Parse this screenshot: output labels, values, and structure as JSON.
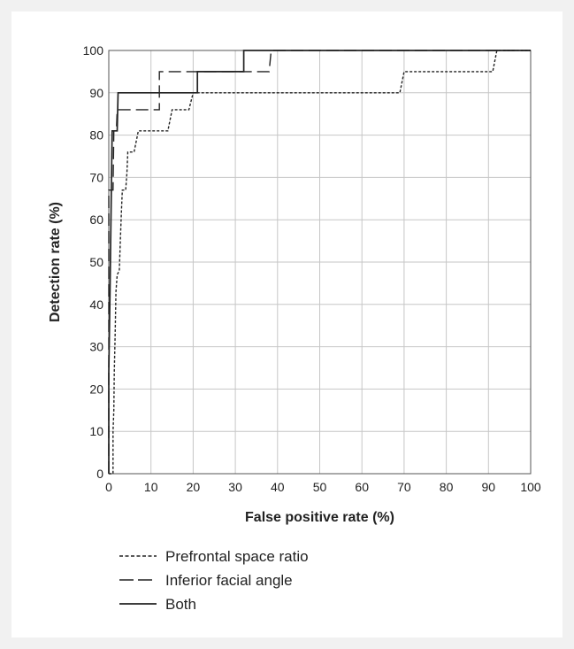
{
  "chart_data": {
    "type": "line",
    "title": "",
    "xlabel": "False positive rate (%)",
    "ylabel": "Detection rate (%)",
    "xlim": [
      0,
      100
    ],
    "ylim": [
      0,
      100
    ],
    "xticks": [
      "0",
      "10",
      "20",
      "30",
      "40",
      "50",
      "60",
      "70",
      "80",
      "90",
      "100"
    ],
    "yticks": [
      "0",
      "10",
      "20",
      "30",
      "40",
      "50",
      "60",
      "70",
      "80",
      "90",
      "100"
    ],
    "grid": true,
    "legend_position": "bottom-left",
    "series": [
      {
        "name": "Prefrontal space ratio",
        "style": "dotted",
        "color": "#222222",
        "points": [
          [
            0,
            0
          ],
          [
            1,
            0
          ],
          [
            1,
            10
          ],
          [
            1.2,
            15
          ],
          [
            1.3,
            24
          ],
          [
            1.5,
            33
          ],
          [
            1.7,
            43
          ],
          [
            2,
            47
          ],
          [
            2.5,
            48
          ],
          [
            2.8,
            57
          ],
          [
            3,
            62
          ],
          [
            3.2,
            67
          ],
          [
            4,
            67
          ],
          [
            4.3,
            71
          ],
          [
            4.5,
            76
          ],
          [
            5,
            76
          ],
          [
            6,
            76
          ],
          [
            7,
            81
          ],
          [
            14,
            81
          ],
          [
            15,
            86
          ],
          [
            19,
            86
          ],
          [
            20,
            90
          ],
          [
            69,
            90
          ],
          [
            70,
            95
          ],
          [
            91,
            95
          ],
          [
            92,
            100
          ],
          [
            100,
            100
          ]
        ]
      },
      {
        "name": "Inferior facial angle",
        "style": "dashed",
        "color": "#222222",
        "points": [
          [
            0,
            0
          ],
          [
            0,
            67
          ],
          [
            1,
            67
          ],
          [
            1.2,
            81
          ],
          [
            1.8,
            81
          ],
          [
            2,
            86
          ],
          [
            12,
            86
          ],
          [
            12,
            95
          ],
          [
            38,
            95
          ],
          [
            38.5,
            100
          ],
          [
            100,
            100
          ]
        ]
      },
      {
        "name": "Both",
        "style": "solid",
        "color": "#222222",
        "points": [
          [
            0,
            0
          ],
          [
            0,
            24
          ],
          [
            0.3,
            43
          ],
          [
            0.6,
            67
          ],
          [
            0.8,
            81
          ],
          [
            1,
            81
          ],
          [
            2,
            81
          ],
          [
            2.2,
            90
          ],
          [
            21,
            90
          ],
          [
            21,
            95
          ],
          [
            32,
            95
          ],
          [
            32,
            100
          ],
          [
            100,
            100
          ]
        ]
      }
    ]
  },
  "colors": {
    "background": "#f1f1f1",
    "panel": "#ffffff",
    "grid": "#c6c6c6",
    "ink": "#222222"
  }
}
